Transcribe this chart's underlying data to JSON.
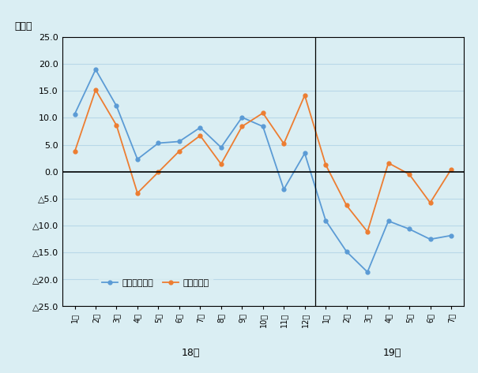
{
  "ylabel_top": "（％）",
  "background_color": "#daeef3",
  "plot_bg_color": "#daeef3",
  "series1_label": "対中輸入総額",
  "series2_label": "うち消費財",
  "series1_color": "#5b9bd5",
  "series2_color": "#ed7d31",
  "series1_values": [
    10.7,
    19.0,
    12.2,
    2.3,
    5.3,
    5.6,
    8.2,
    4.5,
    10.1,
    8.4,
    -3.3,
    3.4,
    -9.1,
    -14.9,
    -18.7,
    -9.2,
    -10.7,
    -12.6,
    -11.9
  ],
  "series2_values": [
    3.7,
    15.2,
    8.6,
    -4.0,
    -0.1,
    3.8,
    6.7,
    1.4,
    8.4,
    10.9,
    5.2,
    14.2,
    1.3,
    -6.3,
    -11.2,
    1.6,
    -0.5,
    -5.8,
    0.4
  ],
  "xlabels_2018": [
    "1月",
    "2月",
    "3月",
    "4月",
    "5月",
    "6月",
    "7月",
    "8月",
    "9月",
    "10月",
    "11月",
    "12月"
  ],
  "xlabels_2019": [
    "1月",
    "2月",
    "3月",
    "4月",
    "5月",
    "6月",
    "7月"
  ],
  "year_labels": [
    "18年",
    "19年"
  ],
  "ylim": [
    -25.0,
    25.0
  ],
  "yticks": [
    25.0,
    20.0,
    15.0,
    10.0,
    5.0,
    0.0,
    -5.0,
    -10.0,
    -15.0,
    -20.0,
    -25.0
  ],
  "ytick_labels": [
    "25.0",
    "20.0",
    "15.0",
    "10.0",
    "5.0",
    "0.0",
    "△5.0",
    "△10.0",
    "△15.0",
    "△20.0",
    "△25.0"
  ],
  "marker_size": 3.5,
  "line_width": 1.3,
  "grid_color": "#b8d8e8",
  "grid_linewidth": 0.8
}
